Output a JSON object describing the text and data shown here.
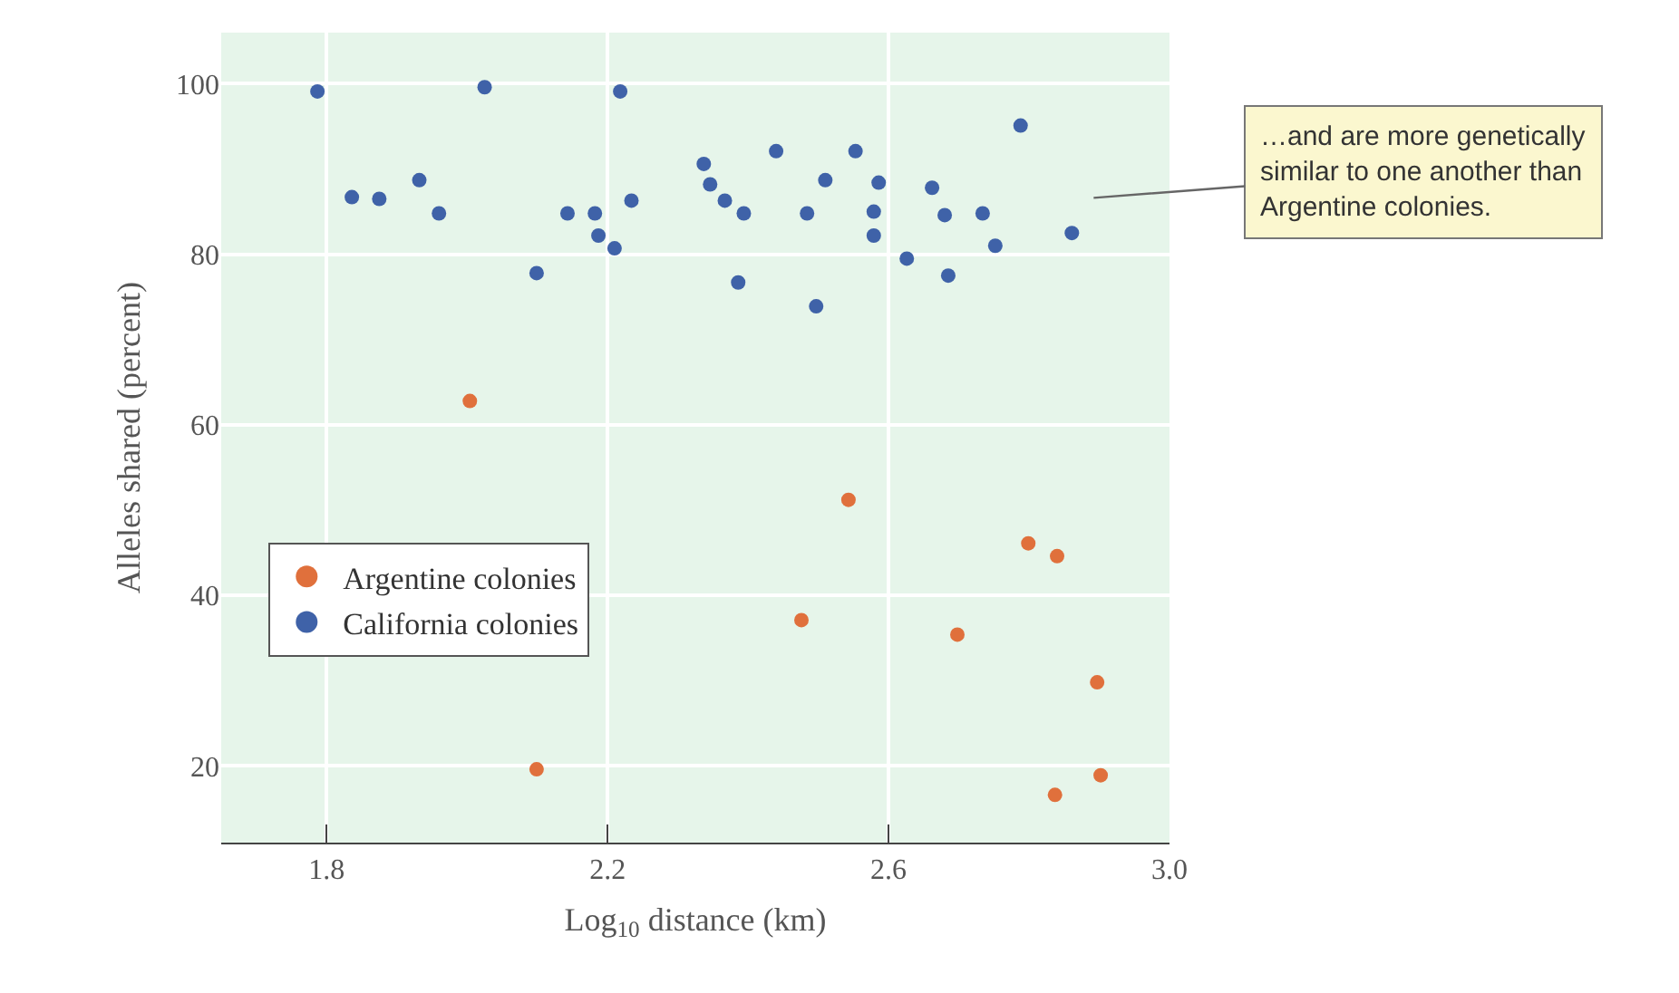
{
  "chart_data": {
    "type": "scatter",
    "xlabel": "Log$_{10}$ distance (km)",
    "ylabel": "Alleles shared (percent)",
    "xlim": [
      1.65,
      3.0
    ],
    "xticks": [
      {
        "value": 1.8,
        "label": "1.8"
      },
      {
        "value": 2.2,
        "label": "2.2"
      },
      {
        "value": 2.6,
        "label": "2.6"
      },
      {
        "value": 3.0,
        "label": "3.0"
      }
    ],
    "ylim": [
      11,
      106
    ],
    "yticks": [
      20,
      40,
      60,
      80,
      100
    ],
    "grid": true,
    "legend": "left",
    "marker": "circle",
    "annotations": [
      "…and are more genetically similar to one another than Argentine colonies."
    ],
    "series": [
      {
        "name": "Argentine colonies",
        "color": "#e0703c",
        "x": [
          2.004,
          2.099,
          2.543,
          2.476,
          2.698,
          2.799,
          2.84,
          2.897,
          2.837,
          2.902
        ],
        "values": [
          62.8,
          19.6,
          51.2,
          37.1,
          35.4,
          46.1,
          44.6,
          29.8,
          16.6,
          18.9
        ]
      },
      {
        "name": "California colonies",
        "color": "#3f62a8",
        "x": [
          1.787,
          1.836,
          1.875,
          1.932,
          1.96,
          2.025,
          2.099,
          2.143,
          2.182,
          2.187,
          2.21,
          2.218,
          2.234,
          2.337,
          2.346,
          2.367,
          2.386,
          2.394,
          2.44,
          2.484,
          2.497,
          2.51,
          2.553,
          2.579,
          2.579,
          2.586,
          2.626,
          2.662,
          2.68,
          2.685,
          2.734,
          2.752,
          2.788,
          2.861
        ],
        "values": [
          99.1,
          86.7,
          86.5,
          88.7,
          84.8,
          99.6,
          77.8,
          84.8,
          84.8,
          82.2,
          80.7,
          99.1,
          86.3,
          90.6,
          88.2,
          86.3,
          76.7,
          84.8,
          92.1,
          84.8,
          73.9,
          88.7,
          92.1,
          85.0,
          82.2,
          88.4,
          79.5,
          87.8,
          84.6,
          77.5,
          84.8,
          81.0,
          95.1,
          82.5
        ]
      }
    ]
  }
}
